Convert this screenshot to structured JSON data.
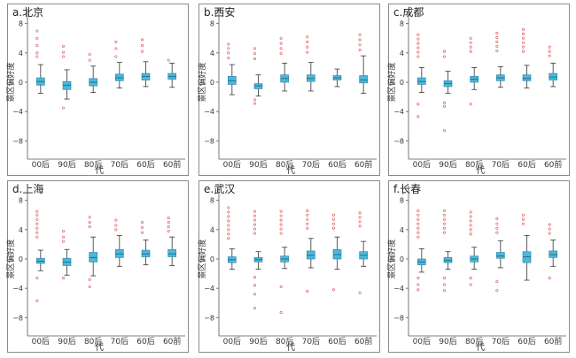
{
  "figure": {
    "y_ticks": [
      -8,
      -4,
      0,
      4,
      8
    ],
    "y_label": "景区偏好度",
    "x_label": "代",
    "box_color": "#4ab8dc",
    "outlier_color": "#e06868"
  },
  "chart_data": [
    {
      "type": "box",
      "title": "a.北京",
      "categories": [
        "00后",
        "90后",
        "80后",
        "70后",
        "60后",
        "60前"
      ],
      "xlabel": "代",
      "ylabel": "景区偏好度",
      "ylim": [
        -10.5,
        10.5
      ],
      "boxes": [
        {
          "q1": -0.4,
          "median": 0.1,
          "q3": 0.6,
          "whisker_low": -1.5,
          "whisker_high": 2.4
        },
        {
          "q1": -1.0,
          "median": -0.4,
          "q3": 0.1,
          "whisker_low": -2.3,
          "whisker_high": 1.7
        },
        {
          "q1": -0.5,
          "median": 0.0,
          "q3": 0.5,
          "whisker_low": -1.4,
          "whisker_high": 2.2
        },
        {
          "q1": 0.2,
          "median": 0.6,
          "q3": 1.1,
          "whisker_low": -0.8,
          "whisker_high": 2.7
        },
        {
          "q1": 0.3,
          "median": 0.8,
          "q3": 1.2,
          "whisker_low": -0.6,
          "whisker_high": 2.8
        },
        {
          "q1": 0.4,
          "median": 0.8,
          "q3": 1.2,
          "whisker_low": -0.7,
          "whisker_high": 2.6
        }
      ],
      "outliers": [
        [
          7.0,
          6.0,
          5.0,
          4.0,
          3.5
        ],
        [
          4.9,
          4.1,
          3.5,
          -3.5
        ],
        [
          3.8,
          3.0
        ],
        [
          5.5,
          4.6,
          3.5
        ],
        [
          5.8,
          5.0,
          4.2
        ],
        [
          3.0
        ]
      ]
    },
    {
      "type": "box",
      "title": "b.西安",
      "categories": [
        "00后",
        "90后",
        "80后",
        "70后",
        "60后",
        "60前"
      ],
      "xlabel": "代",
      "ylabel": "景区偏好度",
      "ylim": [
        -10.5,
        10.5
      ],
      "boxes": [
        {
          "q1": -0.3,
          "median": 0.2,
          "q3": 0.8,
          "whisker_low": -1.7,
          "whisker_high": 2.4
        },
        {
          "q1": -0.9,
          "median": -0.5,
          "q3": -0.2,
          "whisker_low": -1.9,
          "whisker_high": 1.0
        },
        {
          "q1": 0.0,
          "median": 0.5,
          "q3": 1.0,
          "whisker_low": -1.2,
          "whisker_high": 2.6
        },
        {
          "q1": 0.1,
          "median": 0.5,
          "q3": 1.0,
          "whisker_low": -1.2,
          "whisker_high": 2.7
        },
        {
          "q1": 0.3,
          "median": 0.6,
          "q3": 0.9,
          "whisker_low": -0.6,
          "whisker_high": 1.8
        },
        {
          "q1": -0.1,
          "median": 0.3,
          "q3": 0.9,
          "whisker_low": -1.5,
          "whisker_high": 3.6
        }
      ],
      "outliers": [
        [
          5.2,
          4.6,
          4.0,
          3.3
        ],
        [
          4.6,
          3.9,
          3.2,
          -2.4,
          -2.9
        ],
        [
          6.0,
          5.3,
          4.6,
          3.9
        ],
        [
          6.2,
          5.5,
          4.8,
          4.1
        ],
        [],
        [
          6.5,
          5.8,
          5.1,
          4.4
        ]
      ]
    },
    {
      "type": "box",
      "title": "c.成都",
      "categories": [
        "00后",
        "90后",
        "80后",
        "70后",
        "60后",
        "60前"
      ],
      "xlabel": "代",
      "ylabel": "景区偏好度",
      "ylim": [
        -10.5,
        10.5
      ],
      "boxes": [
        {
          "q1": -0.3,
          "median": 0.1,
          "q3": 0.6,
          "whisker_low": -1.4,
          "whisker_high": 2.0
        },
        {
          "q1": -0.6,
          "median": -0.2,
          "q3": 0.2,
          "whisker_low": -1.5,
          "whisker_high": 1.5
        },
        {
          "q1": 0.0,
          "median": 0.4,
          "q3": 0.8,
          "whisker_low": -1.0,
          "whisker_high": 2.0
        },
        {
          "q1": 0.2,
          "median": 0.6,
          "q3": 1.0,
          "whisker_low": -0.7,
          "whisker_high": 2.1
        },
        {
          "q1": 0.2,
          "median": 0.5,
          "q3": 1.0,
          "whisker_low": -0.8,
          "whisker_high": 2.3
        },
        {
          "q1": 0.3,
          "median": 0.7,
          "q3": 1.2,
          "whisker_low": -0.6,
          "whisker_high": 2.6
        }
      ],
      "outliers": [
        [
          6.5,
          5.9,
          5.3,
          4.7,
          4.1,
          3.5,
          -3.0,
          -4.7
        ],
        [
          4.2,
          3.5,
          -2.8,
          -3.3,
          -6.6
        ],
        [
          6.0,
          5.4,
          4.8,
          4.2,
          -3.0
        ],
        [
          6.7,
          6.1,
          5.5,
          4.9,
          4.3
        ],
        [
          7.2,
          6.6,
          6.0,
          5.4,
          4.8,
          4.2
        ],
        [
          4.8,
          4.2,
          3.6
        ]
      ]
    },
    {
      "type": "box",
      "title": "d.上海",
      "categories": [
        "00后",
        "90后",
        "80后",
        "70后",
        "60后",
        "60前"
      ],
      "xlabel": "代",
      "ylabel": "景区偏好度",
      "ylim": [
        -10.5,
        10.5
      ],
      "boxes": [
        {
          "q1": -0.6,
          "median": -0.3,
          "q3": 0.1,
          "whisker_low": -1.6,
          "whisker_high": 1.2
        },
        {
          "q1": -0.9,
          "median": -0.4,
          "q3": 0.1,
          "whisker_low": -2.2,
          "whisker_high": 1.3
        },
        {
          "q1": -0.4,
          "median": 0.2,
          "q3": 0.9,
          "whisker_low": -2.3,
          "whisker_high": 3.0
        },
        {
          "q1": 0.2,
          "median": 0.7,
          "q3": 1.3,
          "whisker_low": -1.0,
          "whisker_high": 3.2
        },
        {
          "q1": 0.3,
          "median": 0.7,
          "q3": 1.2,
          "whisker_low": -0.8,
          "whisker_high": 2.6
        },
        {
          "q1": 0.3,
          "median": 0.7,
          "q3": 1.3,
          "whisker_low": -0.9,
          "whisker_high": 3.0
        }
      ],
      "outliers": [
        [
          6.5,
          6.0,
          5.4,
          4.8,
          4.2,
          3.6,
          3.0,
          -2.6,
          -5.7
        ],
        [
          3.8,
          3.0,
          2.4,
          -2.6
        ],
        [
          5.7,
          5.0,
          4.4,
          -2.8,
          -3.8
        ],
        [
          5.3,
          4.6,
          4.0
        ],
        [
          5.0,
          4.3,
          3.6
        ],
        [
          5.6,
          5.0,
          4.4,
          3.8
        ]
      ]
    },
    {
      "type": "box",
      "title": "e.武汉",
      "categories": [
        "00后",
        "90后",
        "80后",
        "70后",
        "60后",
        "60前"
      ],
      "xlabel": "代",
      "ylabel": "景区偏好度",
      "ylim": [
        -10.5,
        10.5
      ],
      "boxes": [
        {
          "q1": -0.5,
          "median": -0.1,
          "q3": 0.3,
          "whisker_low": -1.4,
          "whisker_high": 1.4
        },
        {
          "q1": -0.4,
          "median": -0.1,
          "q3": 0.2,
          "whisker_low": -1.4,
          "whisker_high": 1.0
        },
        {
          "q1": -0.4,
          "median": 0.0,
          "q3": 0.4,
          "whisker_low": -1.3,
          "whisker_high": 1.6
        },
        {
          "q1": 0.0,
          "median": 0.5,
          "q3": 1.1,
          "whisker_low": -1.2,
          "whisker_high": 2.8
        },
        {
          "q1": 0.0,
          "median": 0.6,
          "q3": 1.3,
          "whisker_low": -1.4,
          "whisker_high": 3.0
        },
        {
          "q1": 0.0,
          "median": 0.5,
          "q3": 1.0,
          "whisker_low": -1.0,
          "whisker_high": 2.4
        }
      ],
      "outliers": [
        [
          7.0,
          6.4,
          5.8,
          5.2,
          4.6,
          4.0,
          3.4,
          2.8
        ],
        [
          6.5,
          5.9,
          5.3,
          4.7,
          4.1,
          3.5,
          -2.5,
          -3.6,
          -4.8,
          -6.7
        ],
        [
          6.5,
          5.9,
          5.3,
          4.7,
          4.1,
          3.5,
          -3.8,
          -7.3
        ],
        [
          6.6,
          6.0,
          5.4,
          4.8,
          4.2,
          -4.4
        ],
        [
          6.0,
          5.4,
          4.8,
          4.2,
          -4.2
        ],
        [
          6.3,
          5.7,
          5.1,
          4.5,
          -4.6
        ]
      ]
    },
    {
      "type": "box",
      "title": "f.长春",
      "categories": [
        "00后",
        "90后",
        "80后",
        "70后",
        "60后",
        "60前"
      ],
      "xlabel": "代",
      "ylabel": "景区偏好度",
      "ylim": [
        -10.5,
        10.5
      ],
      "boxes": [
        {
          "q1": -0.8,
          "median": -0.4,
          "q3": 0.0,
          "whisker_low": -1.8,
          "whisker_high": 1.4
        },
        {
          "q1": -0.5,
          "median": -0.2,
          "q3": 0.2,
          "whisker_low": -1.4,
          "whisker_high": 1.0
        },
        {
          "q1": -0.4,
          "median": 0.0,
          "q3": 0.4,
          "whisker_low": -1.4,
          "whisker_high": 1.6
        },
        {
          "q1": 0.1,
          "median": 0.4,
          "q3": 0.9,
          "whisker_low": -1.2,
          "whisker_high": 2.5
        },
        {
          "q1": -0.5,
          "median": 0.3,
          "q3": 1.0,
          "whisker_low": -2.9,
          "whisker_high": 3.2
        },
        {
          "q1": 0.2,
          "median": 0.6,
          "q3": 1.1,
          "whisker_low": -1.0,
          "whisker_high": 2.6
        }
      ],
      "outliers": [
        [
          6.6,
          6.0,
          5.4,
          4.8,
          4.2,
          3.6,
          3.0,
          -2.6,
          -3.5,
          -4.2
        ],
        [
          6.6,
          6.0,
          5.4,
          4.8,
          4.2,
          3.6,
          -2.6,
          -3.5,
          -4.3
        ],
        [
          6.4,
          5.8,
          5.2,
          4.6,
          4.0,
          3.4,
          -2.6,
          -3.5
        ],
        [
          5.5,
          4.8,
          4.2,
          3.6,
          -3.1,
          -4.3
        ],
        [
          6.0,
          5.4,
          4.8
        ],
        [
          4.7,
          4.1,
          3.5,
          -2.6
        ]
      ]
    }
  ]
}
